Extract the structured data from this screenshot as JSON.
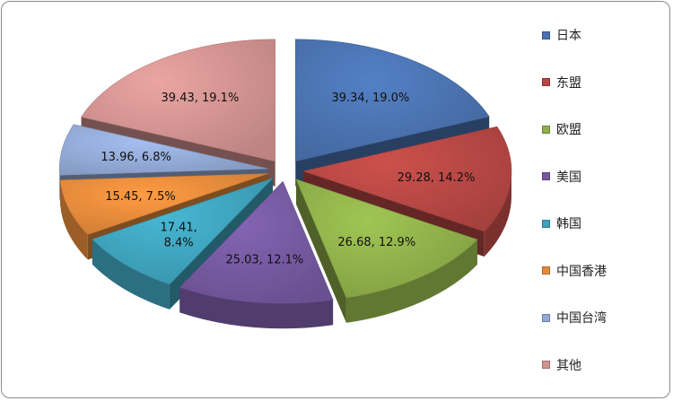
{
  "chart_data": {
    "type": "pie",
    "title": "",
    "legend_position": "right",
    "slices": [
      {
        "name": "日本",
        "value": 39.34,
        "percent": "19.0%",
        "color": "#4a72b0"
      },
      {
        "name": "东盟",
        "value": 29.28,
        "percent": "14.2%",
        "color": "#b64744"
      },
      {
        "name": "欧盟",
        "value": 26.68,
        "percent": "12.9%",
        "color": "#8fb04a"
      },
      {
        "name": "美国",
        "value": 25.03,
        "percent": "12.1%",
        "color": "#7559a0"
      },
      {
        "name": "韩国",
        "value": 17.41,
        "percent": "8.4%",
        "color": "#3fa3bd"
      },
      {
        "name": "中国香港",
        "value": 15.45,
        "percent": "7.5%",
        "color": "#e48a3b"
      },
      {
        "name": "中国台湾",
        "value": 13.96,
        "percent": "6.8%",
        "color": "#93aad6"
      },
      {
        "name": "其他",
        "value": 39.43,
        "percent": "19.1%",
        "color": "#d29391"
      }
    ]
  }
}
